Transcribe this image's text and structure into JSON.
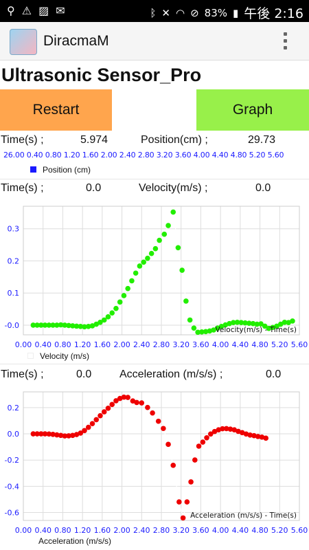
{
  "status_bar": {
    "icons_left": [
      "location-icon",
      "warning-icon",
      "image-icon",
      "mail-icon"
    ],
    "battery": "83%",
    "time": "午後 2:16"
  },
  "app_bar": {
    "title": "DiracmaM"
  },
  "page": {
    "title": "Ultrasonic Sensor_Pro"
  },
  "buttons": {
    "restart": "Restart",
    "graph": "Graph"
  },
  "position_row": {
    "time_label": "Time(s) ;",
    "time_value": "5.974",
    "value_label": "Position(cm) ;",
    "value": "29.73",
    "legend": "Position (cm)",
    "ticks": "26.00 0.40 0.80 1.20 1.60 2.00 2.40 2.80 3.20 3.60 4.00 4.40 4.80 5.20 5.60"
  },
  "velocity_row": {
    "time_label": "Time(s) ;",
    "time_value": "0.0",
    "value_label": "Velocity(m/s) ;",
    "value": "0.0",
    "legend": "Velocity (m/s)"
  },
  "acceleration_row": {
    "time_label": "Time(s) ;",
    "time_value": "0.0",
    "value_label": "Acceleration (m/s/s) ;",
    "value": "0.0",
    "legend": "Acceleration (m/s/s)"
  },
  "colors": {
    "restart": "#ffa54d",
    "graph": "#98f04a",
    "velocity": "#22ee00",
    "acceleration": "#ee0000",
    "axis_text": "#1a1aff"
  },
  "chart_data": [
    {
      "type": "scatter",
      "title": "Velocity(m/s) - Time(s)",
      "xlim": [
        0,
        5.6
      ],
      "ylim": [
        -0.03,
        0.37
      ],
      "x_ticks": [
        "0.00",
        "0.40",
        "0.80",
        "1.20",
        "1.60",
        "2.00",
        "2.40",
        "2.80",
        "3.20",
        "3.60",
        "4.00",
        "4.40",
        "4.80",
        "5.20",
        "5.60"
      ],
      "y_ticks": [
        "0.3",
        "0.2",
        "0.1",
        "-0.0"
      ],
      "series": [
        {
          "name": "Velocity (m/s)",
          "x": [
            0.2,
            0.28,
            0.36,
            0.44,
            0.52,
            0.6,
            0.68,
            0.76,
            0.84,
            0.92,
            1.0,
            1.08,
            1.16,
            1.24,
            1.32,
            1.4,
            1.48,
            1.56,
            1.64,
            1.72,
            1.8,
            1.88,
            1.96,
            2.04,
            2.12,
            2.2,
            2.28,
            2.36,
            2.44,
            2.52,
            2.6,
            2.68,
            2.76,
            2.86,
            2.94,
            3.04,
            3.14,
            3.22,
            3.3,
            3.38,
            3.46,
            3.54,
            3.62,
            3.7,
            3.78,
            3.86,
            3.94,
            4.02,
            4.1,
            4.18,
            4.26,
            4.34,
            4.42,
            4.5,
            4.58,
            4.66,
            4.74,
            4.82,
            4.9,
            4.98,
            5.06,
            5.14,
            5.22,
            5.3,
            5.38,
            5.46
          ],
          "y": [
            0.0,
            0.0,
            0.0,
            0.0,
            0.0,
            0.0,
            0.0,
            0.001,
            0.0,
            -0.001,
            -0.002,
            -0.003,
            -0.004,
            -0.005,
            -0.004,
            -0.002,
            0.003,
            0.009,
            0.016,
            0.026,
            0.038,
            0.052,
            0.072,
            0.092,
            0.114,
            0.138,
            0.162,
            0.184,
            0.196,
            0.208,
            0.223,
            0.238,
            0.264,
            0.283,
            0.31,
            0.352,
            0.241,
            0.171,
            0.075,
            0.016,
            -0.009,
            -0.022,
            -0.021,
            -0.02,
            -0.018,
            -0.015,
            -0.009,
            -0.004,
            0.001,
            0.005,
            0.008,
            0.009,
            0.008,
            0.007,
            0.006,
            0.005,
            0.003,
            0.004,
            -0.003,
            -0.01,
            -0.007,
            -0.003,
            0.003,
            0.009,
            0.008,
            0.013
          ]
        }
      ]
    },
    {
      "type": "scatter",
      "title": "Acceleration (m/s/s) - Time(s)",
      "xlim": [
        0,
        5.6
      ],
      "ylim": [
        -0.66,
        0.32
      ],
      "x_ticks": [
        "0.00",
        "0.40",
        "0.80",
        "1.20",
        "1.60",
        "2.00",
        "2.40",
        "2.80",
        "3.20",
        "3.60",
        "4.00",
        "4.40",
        "4.80",
        "5.20",
        "5.60"
      ],
      "y_ticks": [
        "0.2",
        "0.0",
        "-0.2",
        "-0.4",
        "-0.6"
      ],
      "series": [
        {
          "name": "Acceleration (m/s/s)",
          "x": [
            0.2,
            0.28,
            0.36,
            0.44,
            0.52,
            0.6,
            0.68,
            0.76,
            0.84,
            0.92,
            1.0,
            1.08,
            1.16,
            1.24,
            1.32,
            1.4,
            1.48,
            1.56,
            1.64,
            1.72,
            1.8,
            1.88,
            1.96,
            2.04,
            2.12,
            2.22,
            2.3,
            2.4,
            2.52,
            2.62,
            2.74,
            2.84,
            2.94,
            3.04,
            3.16,
            3.24,
            3.32,
            3.4,
            3.48,
            3.56,
            3.64,
            3.72,
            3.8,
            3.88,
            3.96,
            4.04,
            4.12,
            4.2,
            4.28,
            4.36,
            4.44,
            4.52,
            4.6,
            4.68,
            4.76,
            4.84,
            4.92
          ],
          "y": [
            0.0,
            0.0,
            0.0,
            0.0,
            -0.001,
            -0.004,
            -0.008,
            -0.012,
            -0.016,
            -0.015,
            -0.012,
            -0.005,
            0.006,
            0.025,
            0.05,
            0.078,
            0.108,
            0.138,
            0.168,
            0.195,
            0.224,
            0.252,
            0.27,
            0.28,
            0.278,
            0.251,
            0.239,
            0.236,
            0.201,
            0.159,
            0.096,
            0.041,
            -0.08,
            -0.24,
            -0.519,
            -0.641,
            -0.519,
            -0.366,
            -0.199,
            -0.094,
            -0.063,
            -0.03,
            -0.001,
            0.018,
            0.031,
            0.039,
            0.04,
            0.036,
            0.031,
            0.019,
            0.009,
            -0.001,
            -0.009,
            -0.014,
            -0.02,
            -0.025,
            -0.033
          ]
        }
      ]
    }
  ]
}
